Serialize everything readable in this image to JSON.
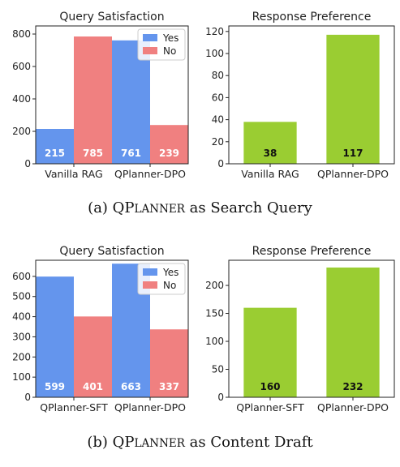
{
  "captions": {
    "a": {
      "prefix": "(a) QP",
      "smallcaps": "LANNER",
      "suffix": " as Search Query"
    },
    "b": {
      "prefix": "(b) QP",
      "smallcaps": "LANNER",
      "suffix": " as Content Draft"
    }
  },
  "chart_data": [
    {
      "type": "bar",
      "title": "Query Satisfaction",
      "categories": [
        "Vanilla RAG",
        "QPlanner-DPO"
      ],
      "series": [
        {
          "name": "Yes",
          "values": [
            215,
            761
          ],
          "color": "#6495ED"
        },
        {
          "name": "No",
          "values": [
            785,
            239
          ],
          "color": "#F08080"
        }
      ],
      "ylim": [
        0,
        850
      ],
      "yticks": [
        0,
        200,
        400,
        600,
        800
      ],
      "legend": "top-right",
      "data_labels": true
    },
    {
      "type": "bar",
      "title": "Response Preference",
      "categories": [
        "Vanilla RAG",
        "QPlanner-DPO"
      ],
      "series": [
        {
          "values": [
            38,
            117
          ],
          "color": "#9ACD32"
        }
      ],
      "ylim": [
        0,
        125
      ],
      "yticks": [
        0,
        20,
        40,
        60,
        80,
        100,
        120
      ],
      "data_labels": true
    },
    {
      "type": "bar",
      "title": "Query Satisfaction",
      "categories": [
        "QPlanner-SFT",
        "QPlanner-DPO"
      ],
      "series": [
        {
          "name": "Yes",
          "values": [
            599,
            663
          ],
          "color": "#6495ED"
        },
        {
          "name": "No",
          "values": [
            401,
            337
          ],
          "color": "#F08080"
        }
      ],
      "ylim": [
        0,
        680
      ],
      "yticks": [
        0,
        100,
        200,
        300,
        400,
        500,
        600
      ],
      "legend": "top-right",
      "data_labels": true
    },
    {
      "type": "bar",
      "title": "Response Preference",
      "categories": [
        "QPlanner-SFT",
        "QPlanner-DPO"
      ],
      "series": [
        {
          "values": [
            160,
            232
          ],
          "color": "#9ACD32"
        }
      ],
      "ylim": [
        0,
        245
      ],
      "yticks": [
        0,
        50,
        100,
        150,
        200
      ],
      "data_labels": true
    }
  ]
}
